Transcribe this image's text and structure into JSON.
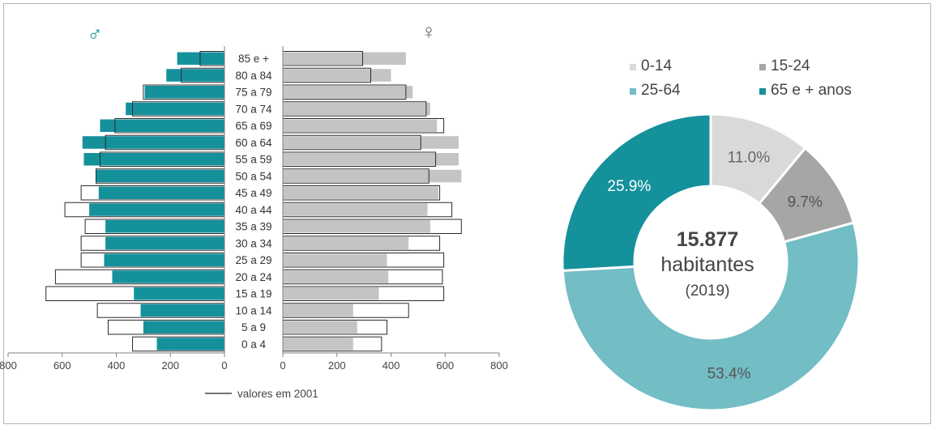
{
  "chart_data": [
    {
      "type": "bar",
      "subtype": "population-pyramid",
      "title": "",
      "xlabel": "",
      "ylabel": "",
      "xlim": [
        0,
        800
      ],
      "sides": {
        "left": {
          "symbol": "♂",
          "color": "#14919b"
        },
        "right": {
          "symbol": "♀",
          "color": "#c4c4c4"
        }
      },
      "categories": [
        "85 e +",
        "80 a 84",
        "75 a 79",
        "70 a 74",
        "65 a 69",
        "60 a 64",
        "55 a 59",
        "50 a 54",
        "45 a 49",
        "40 a 44",
        "35 a 39",
        "30 a 34",
        "25 a 29",
        "20 a 24",
        "15 a 19",
        "10 a 14",
        "5 a 9",
        "0 a 4"
      ],
      "male_values": [
        175,
        215,
        295,
        365,
        460,
        525,
        520,
        475,
        465,
        500,
        440,
        440,
        445,
        415,
        335,
        310,
        300,
        250
      ],
      "female_values": [
        455,
        400,
        480,
        545,
        570,
        650,
        650,
        660,
        575,
        535,
        545,
        465,
        385,
        390,
        355,
        260,
        275,
        260
      ],
      "male_2001": [
        90,
        160,
        300,
        340,
        405,
        440,
        460,
        475,
        530,
        590,
        515,
        530,
        530,
        625,
        660,
        470,
        430,
        340
      ],
      "female_2001": [
        295,
        325,
        455,
        530,
        595,
        510,
        565,
        540,
        580,
        625,
        660,
        580,
        595,
        590,
        595,
        465,
        385,
        365
      ],
      "ticks": [
        "800",
        "600",
        "400",
        "200",
        "0",
        "0",
        "200",
        "400",
        "600",
        "800"
      ],
      "legend_label": "valores em 2001"
    },
    {
      "type": "pie",
      "subtype": "donut",
      "legend": [
        "0-14",
        "15-24",
        "25-64",
        "65 e + anos"
      ],
      "values": [
        11.0,
        9.7,
        53.4,
        25.9
      ],
      "labels": [
        "11.0%",
        "9.7%",
        "53.4%",
        "25.9%"
      ],
      "colors": [
        "#d9d9d9",
        "#a6a6a6",
        "#73bdc5",
        "#14919b"
      ],
      "center_value": "15.877",
      "center_label": "habitantes",
      "center_year": "(2019)"
    }
  ]
}
